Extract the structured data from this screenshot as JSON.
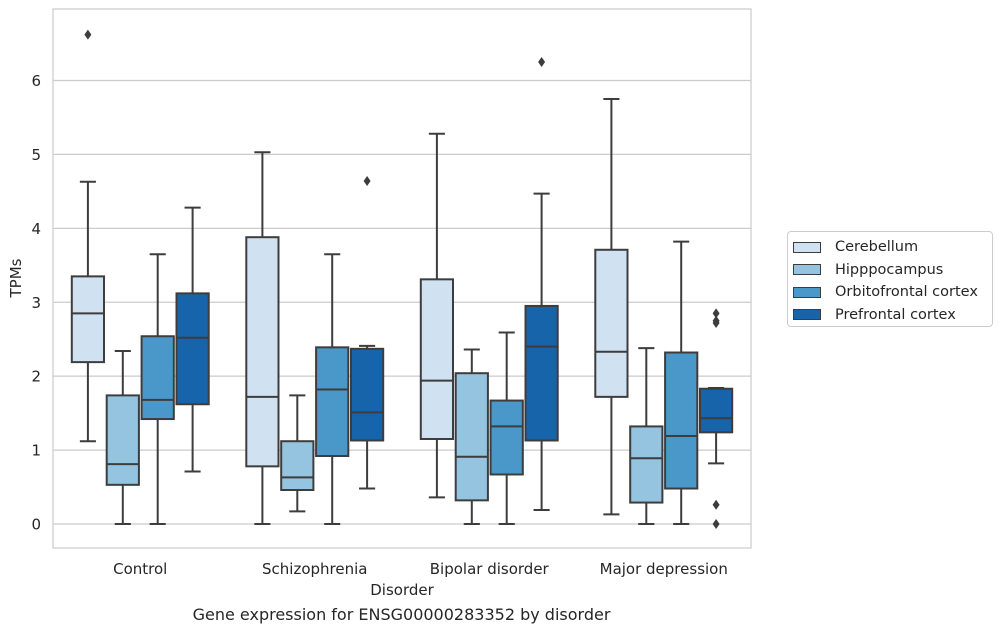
{
  "caption": "Gene expression for ENSG00000283352 by disorder",
  "chart_data": {
    "type": "box",
    "xlabel": "Disorder",
    "ylabel": "TPMs",
    "ylim": [
      -0.3,
      6.95
    ],
    "yticks": [
      0,
      1,
      2,
      3,
      4,
      5,
      6
    ],
    "grid": true,
    "legend_position": "right",
    "categories": [
      "Control",
      "Schizophrenia",
      "Bipolar disorder",
      "Major depression"
    ],
    "series": [
      {
        "name": "Cerebellum",
        "color": "#d0e1f2",
        "boxes": [
          {
            "whislo": 1.12,
            "q1": 2.19,
            "med": 2.85,
            "q3": 3.35,
            "whishi": 4.63,
            "fliers": [
              6.62
            ]
          },
          {
            "whislo": 0.0,
            "q1": 0.78,
            "med": 1.72,
            "q3": 3.88,
            "whishi": 5.03,
            "fliers": []
          },
          {
            "whislo": 0.36,
            "q1": 1.15,
            "med": 1.94,
            "q3": 3.31,
            "whishi": 5.28,
            "fliers": []
          },
          {
            "whislo": 0.13,
            "q1": 1.72,
            "med": 2.33,
            "q3": 3.71,
            "whishi": 5.75,
            "fliers": []
          }
        ]
      },
      {
        "name": "Hipppocampus",
        "color": "#94c4df",
        "boxes": [
          {
            "whislo": 0.0,
            "q1": 0.53,
            "med": 0.81,
            "q3": 1.74,
            "whishi": 2.34,
            "fliers": []
          },
          {
            "whislo": 0.17,
            "q1": 0.46,
            "med": 0.63,
            "q3": 1.12,
            "whishi": 1.74,
            "fliers": []
          },
          {
            "whislo": 0.0,
            "q1": 0.32,
            "med": 0.91,
            "q3": 2.04,
            "whishi": 2.36,
            "fliers": []
          },
          {
            "whislo": 0.0,
            "q1": 0.29,
            "med": 0.89,
            "q3": 1.32,
            "whishi": 2.38,
            "fliers": []
          }
        ]
      },
      {
        "name": "Orbitofrontal cortex",
        "color": "#4a98c9",
        "boxes": [
          {
            "whislo": 0.0,
            "q1": 1.42,
            "med": 1.68,
            "q3": 2.54,
            "whishi": 3.65,
            "fliers": []
          },
          {
            "whislo": 0.0,
            "q1": 0.92,
            "med": 1.82,
            "q3": 2.39,
            "whishi": 3.65,
            "fliers": []
          },
          {
            "whislo": 0.0,
            "q1": 0.67,
            "med": 1.32,
            "q3": 1.67,
            "whishi": 2.59,
            "fliers": []
          },
          {
            "whislo": 0.0,
            "q1": 0.48,
            "med": 1.19,
            "q3": 2.32,
            "whishi": 3.82,
            "fliers": []
          }
        ]
      },
      {
        "name": "Prefrontal cortex",
        "color": "#1764ab",
        "boxes": [
          {
            "whislo": 0.71,
            "q1": 1.62,
            "med": 2.52,
            "q3": 3.12,
            "whishi": 4.28,
            "fliers": []
          },
          {
            "whislo": 0.48,
            "q1": 1.13,
            "med": 1.51,
            "q3": 2.37,
            "whishi": 2.41,
            "fliers": [
              4.64
            ]
          },
          {
            "whislo": 0.19,
            "q1": 1.13,
            "med": 2.4,
            "q3": 2.95,
            "whishi": 4.47,
            "fliers": [
              6.25
            ]
          },
          {
            "whislo": 0.82,
            "q1": 1.24,
            "med": 1.43,
            "q3": 1.83,
            "whishi": 1.84,
            "fliers": [
              2.85,
              2.75,
              2.72,
              0.26,
              0.0
            ]
          }
        ]
      }
    ]
  }
}
